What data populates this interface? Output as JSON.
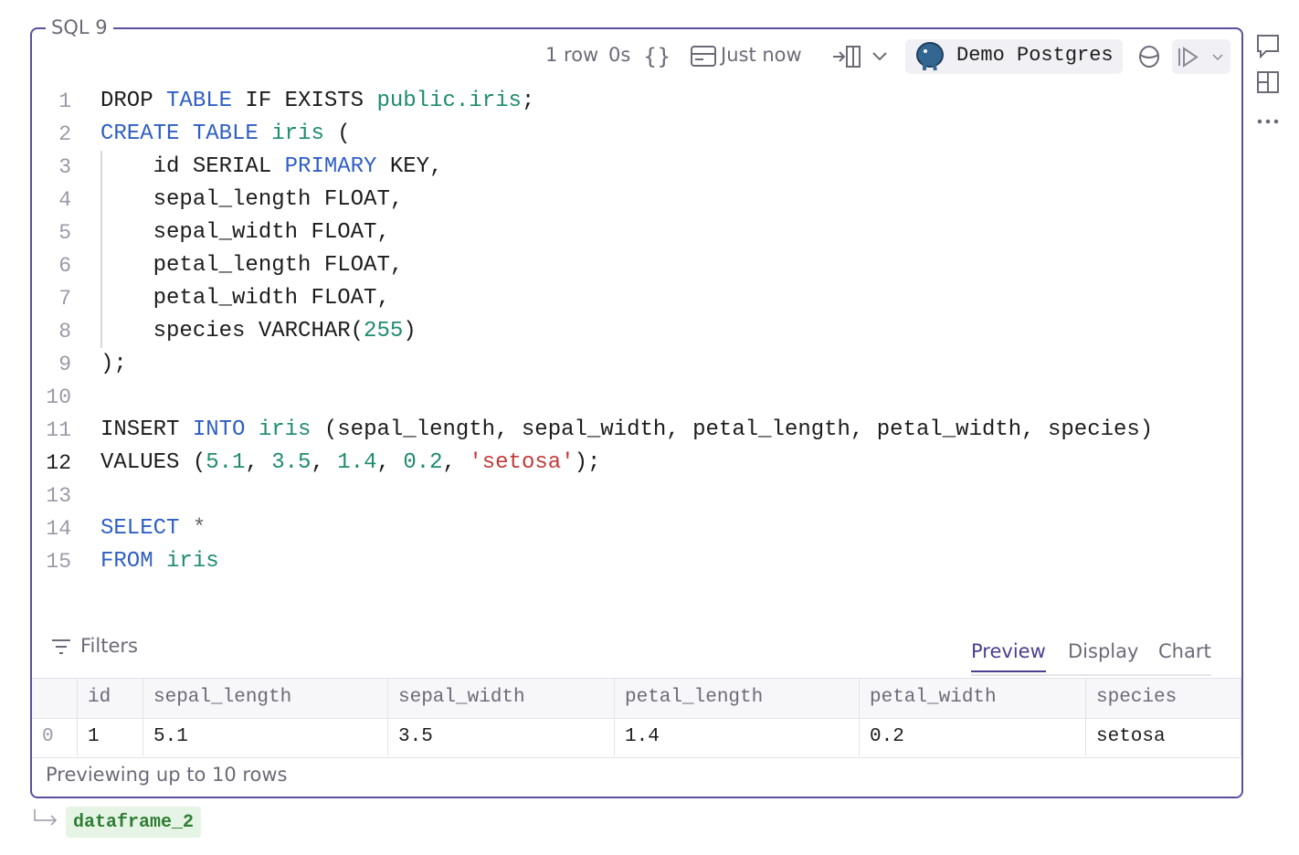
{
  "cell": {
    "title": "SQL 9",
    "toolbar": {
      "rows": "1 row",
      "duration": "0s",
      "updated": "Just now",
      "connection": "Demo Postgres"
    },
    "code": {
      "active_line": 12,
      "lines": [
        {
          "number": 1,
          "tokens": [
            {
              "text": "DROP ",
              "color": "#1c1c1c"
            },
            {
              "text": "TABLE",
              "color": "#2f5fc4"
            },
            {
              "text": " IF EXISTS ",
              "color": "#1c1c1c"
            },
            {
              "text": "public.iris",
              "color": "#1e8c6e"
            },
            {
              "text": ";",
              "color": "#1c1c1c"
            }
          ]
        },
        {
          "number": 2,
          "tokens": [
            {
              "text": "CREATE TABLE",
              "color": "#2f5fc4"
            },
            {
              "text": " ",
              "color": "#1c1c1c"
            },
            {
              "text": "iris",
              "color": "#1e8c6e"
            },
            {
              "text": " (",
              "color": "#1c1c1c"
            }
          ]
        },
        {
          "number": 3,
          "tokens": [
            {
              "text": "    id SERIAL ",
              "color": "#1c1c1c"
            },
            {
              "text": "PRIMARY",
              "color": "#2f5fc4"
            },
            {
              "text": " KEY,",
              "color": "#1c1c1c"
            }
          ]
        },
        {
          "number": 4,
          "tokens": [
            {
              "text": "    sepal_length FLOAT,",
              "color": "#1c1c1c"
            }
          ]
        },
        {
          "number": 5,
          "tokens": [
            {
              "text": "    sepal_width FLOAT,",
              "color": "#1c1c1c"
            }
          ]
        },
        {
          "number": 6,
          "tokens": [
            {
              "text": "    petal_length FLOAT,",
              "color": "#1c1c1c"
            }
          ]
        },
        {
          "number": 7,
          "tokens": [
            {
              "text": "    petal_width FLOAT,",
              "color": "#1c1c1c"
            }
          ]
        },
        {
          "number": 8,
          "tokens": [
            {
              "text": "    species VARCHAR(",
              "color": "#1c1c1c"
            },
            {
              "text": "255",
              "color": "#1e8c6e"
            },
            {
              "text": ")",
              "color": "#1c1c1c"
            }
          ]
        },
        {
          "number": 9,
          "tokens": [
            {
              "text": ");",
              "color": "#1c1c1c"
            }
          ]
        },
        {
          "number": 10,
          "tokens": []
        },
        {
          "number": 11,
          "tokens": [
            {
              "text": "INSERT ",
              "color": "#1c1c1c"
            },
            {
              "text": "INTO",
              "color": "#2f5fc4"
            },
            {
              "text": " ",
              "color": "#1c1c1c"
            },
            {
              "text": "iris",
              "color": "#1e8c6e"
            },
            {
              "text": " (sepal_length, sepal_width, petal_length, petal_width, species)",
              "color": "#1c1c1c"
            }
          ]
        },
        {
          "number": 12,
          "tokens": [
            {
              "text": "VALUES (",
              "color": "#1c1c1c"
            },
            {
              "text": "5.1",
              "color": "#1e8c6e"
            },
            {
              "text": ", ",
              "color": "#1c1c1c"
            },
            {
              "text": "3.5",
              "color": "#1e8c6e"
            },
            {
              "text": ", ",
              "color": "#1c1c1c"
            },
            {
              "text": "1.4",
              "color": "#1e8c6e"
            },
            {
              "text": ", ",
              "color": "#1c1c1c"
            },
            {
              "text": "0.2",
              "color": "#1e8c6e"
            },
            {
              "text": ", ",
              "color": "#1c1c1c"
            },
            {
              "text": "'setosa'",
              "color": "#c23a3a"
            },
            {
              "text": ");",
              "color": "#1c1c1c"
            }
          ]
        },
        {
          "number": 13,
          "tokens": []
        },
        {
          "number": 14,
          "tokens": [
            {
              "text": "SELECT",
              "color": "#2f5fc4"
            },
            {
              "text": " ",
              "color": "#1c1c1c"
            },
            {
              "text": "*",
              "color": "#666666"
            }
          ]
        },
        {
          "number": 15,
          "tokens": [
            {
              "text": "FROM",
              "color": "#2f5fc4"
            },
            {
              "text": " ",
              "color": "#1c1c1c"
            },
            {
              "text": "iris",
              "color": "#1e8c6e"
            }
          ]
        }
      ]
    },
    "filters": "Filters",
    "tabs": [
      "Preview",
      "Display",
      "Chart"
    ],
    "table": {
      "columns": [
        "id",
        "sepal_length",
        "sepal_width",
        "petal_length",
        "petal_width",
        "species"
      ],
      "rows": [
        {
          "index": 0,
          "cells": [
            1,
            5.1,
            3.5,
            1.4,
            0.2,
            "setosa"
          ]
        }
      ]
    },
    "footer": "Previewing up to 10 rows",
    "output": "dataframe_2"
  }
}
